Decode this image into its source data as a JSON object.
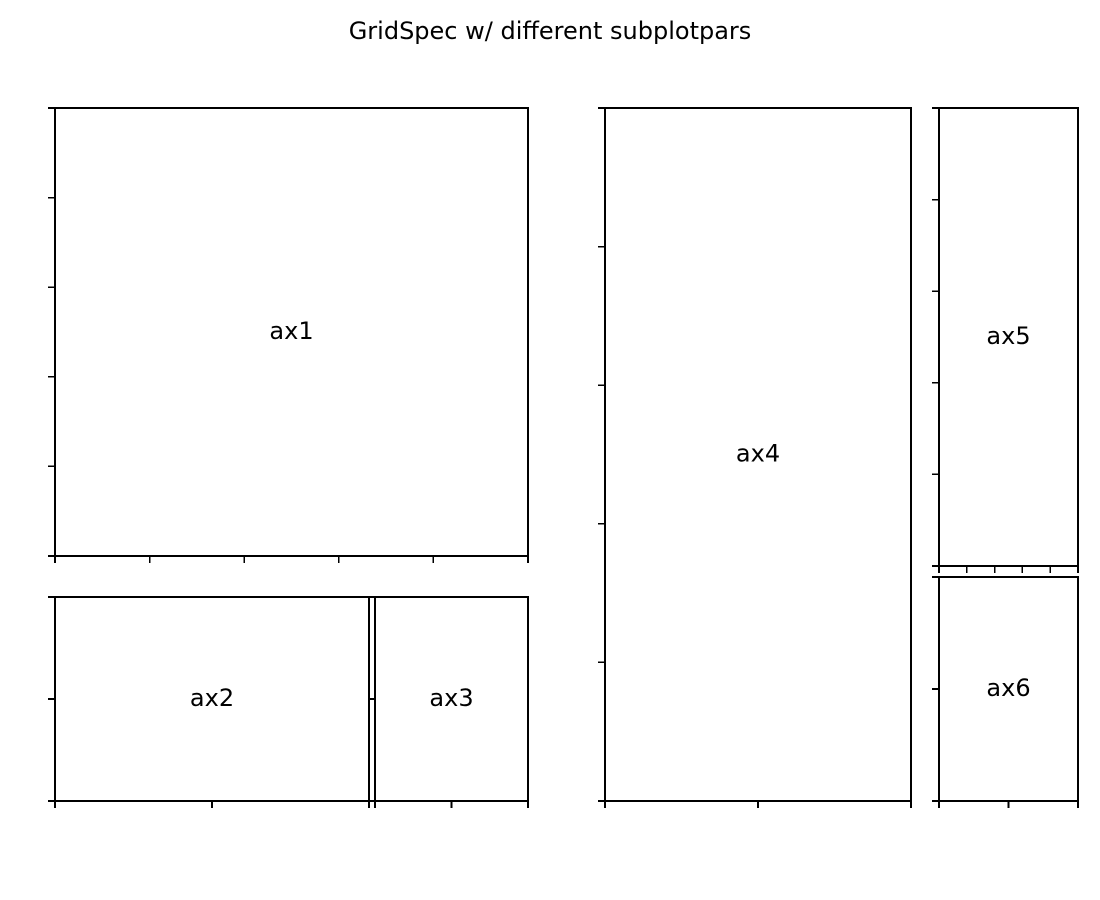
{
  "chart_data": {
    "type": "subplot-layout",
    "title": "GridSpec w/ different subplotpars",
    "axes": [
      {
        "label": "ax1",
        "x_ticks": 6,
        "y_ticks": 6,
        "ticklabels": false
      },
      {
        "label": "ax2",
        "x_ticks": 3,
        "y_ticks": 3,
        "ticklabels": false
      },
      {
        "label": "ax3",
        "x_ticks": 3,
        "y_ticks": 3,
        "ticklabels": false
      },
      {
        "label": "ax4",
        "x_ticks": 3,
        "y_ticks": 6,
        "ticklabels": false
      },
      {
        "label": "ax5",
        "x_ticks": 6,
        "y_ticks": 6,
        "ticklabels": false
      },
      {
        "label": "ax6",
        "x_ticks": 3,
        "y_ticks": 3,
        "ticklabels": false
      }
    ],
    "grid": false,
    "legend": "none"
  }
}
